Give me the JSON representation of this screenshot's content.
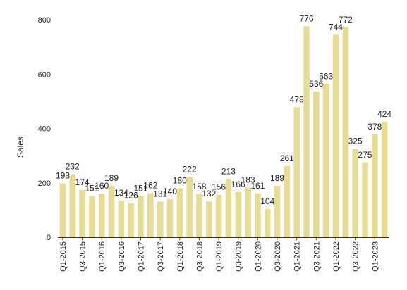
{
  "chart_data": {
    "type": "bar",
    "ylabel": "Sales",
    "xlabel": "",
    "ylim": [
      0,
      800
    ],
    "yticks": [
      0,
      200,
      400,
      600,
      800
    ],
    "grid": false,
    "legend": "none",
    "bar_color": "#e8dc94",
    "categories": [
      "Q1-2015",
      "Q2-2015",
      "Q3-2015",
      "Q4-2015",
      "Q1-2016",
      "Q2-2016",
      "Q3-2016",
      "Q4-2016",
      "Q1-2017",
      "Q2-2017",
      "Q3-2017",
      "Q4-2017",
      "Q1-2018",
      "Q2-2018",
      "Q3-2018",
      "Q4-2018",
      "Q1-2019",
      "Q2-2019",
      "Q3-2019",
      "Q4-2019",
      "Q1-2020",
      "Q2-2020",
      "Q3-2020",
      "Q4-2020",
      "Q1-2021",
      "Q2-2021",
      "Q3-2021",
      "Q4-2021",
      "Q1-2022",
      "Q2-2022",
      "Q3-2022",
      "Q4-2022",
      "Q1-2023",
      "Q2-2023"
    ],
    "x_tick_labels": [
      "Q1-2015",
      "Q3-2015",
      "Q1-2016",
      "Q3-2016",
      "Q1-2017",
      "Q3-2017",
      "Q1-2018",
      "Q3-2018",
      "Q1-2019",
      "Q3-2019",
      "Q1-2020",
      "Q3-2020",
      "Q1-2021",
      "Q3-2021",
      "Q1-2022",
      "Q3-2022",
      "Q1-2023"
    ],
    "values": [
      198,
      232,
      174,
      151,
      160,
      189,
      134,
      126,
      151,
      162,
      131,
      140,
      180,
      222,
      158,
      132,
      156,
      213,
      166,
      183,
      161,
      104,
      189,
      261,
      478,
      776,
      536,
      563,
      744,
      772,
      325,
      275,
      378,
      424
    ]
  }
}
